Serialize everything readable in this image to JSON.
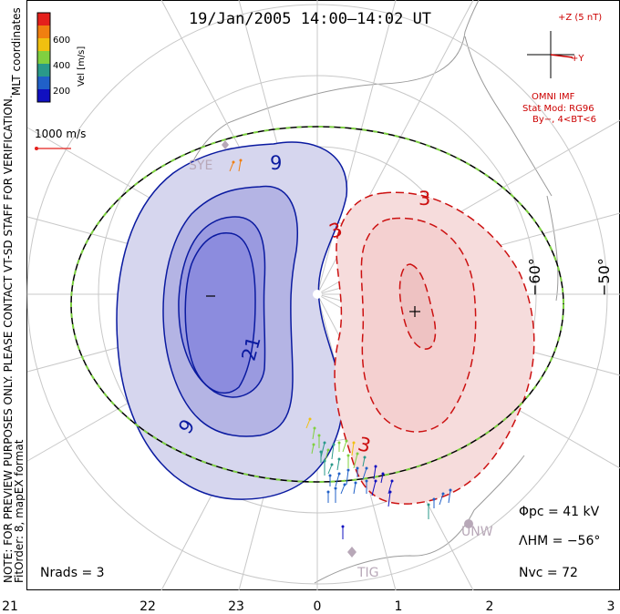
{
  "title": "19/Jan/2005 14:00–14:02 UT",
  "colorbar": {
    "unit_label": "Vel [m/s]",
    "coord_label": "MLT coordinates",
    "ticks": [
      "600",
      "400",
      "200"
    ],
    "colors": [
      "#e4201c",
      "#f07f10",
      "#f0c010",
      "#80d040",
      "#2a9a8a",
      "#2060c8",
      "#1010c0"
    ]
  },
  "scale_vector_label": "1000 m/s",
  "note_label": "NOTE: FOR PREVIEW PURPOSES ONLY. PLEASE CONTACT VT-SD STAFF FOR VERIFICATION.",
  "fit_label": "FitOrder: 8, mapEX format",
  "imf": {
    "z_label": "+Z (5 nT)",
    "y_label": "+Y",
    "source": "OMNI IMF",
    "model": "Stat Mod: RG96",
    "condition": "By−, 4<BT<6",
    "color": "#cc0000"
  },
  "contours": {
    "neg_labels": [
      "9",
      "21",
      "9"
    ],
    "pos_labels": [
      "3",
      "3",
      "3"
    ],
    "neg_color": "#0a1aa0",
    "pos_color": "#cc1010"
  },
  "latitude_labels": [
    "−60°",
    "−50°"
  ],
  "stations": [
    "SYE",
    "UNW",
    "TIG"
  ],
  "stats": {
    "phi_pc": "Φpc = 41 kV",
    "lambda_hm": "ΛHM = −56°",
    "n_vc": "Nvc = 72",
    "n_rads": "Nrads = 3"
  },
  "mlt_ticks": [
    "21",
    "22",
    "23",
    "0",
    "1",
    "2",
    "3"
  ]
}
